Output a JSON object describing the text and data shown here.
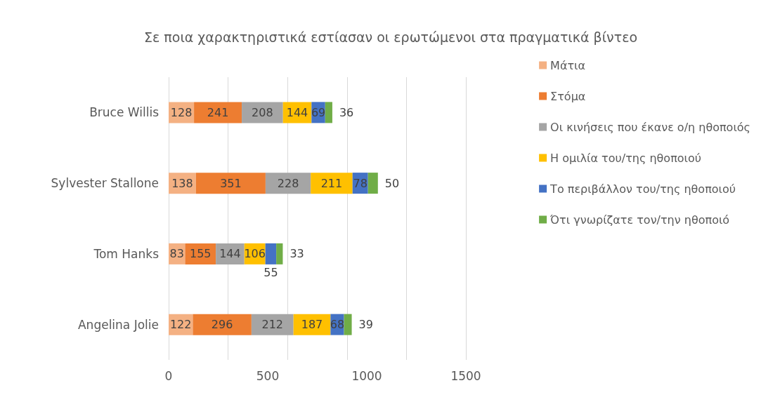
{
  "chart_data": {
    "type": "bar",
    "orientation": "horizontal",
    "stacked": true,
    "title": "Σε ποια χαρακτηριστικά εστίασαν οι ερωτώμενοι στα πραγματικά βίντεο",
    "categories": [
      "Bruce Willis",
      "Sylvester Stallone",
      "Tom Hanks",
      "Angelina Jolie"
    ],
    "series": [
      {
        "name": "Μάτια",
        "color": "#f4b183",
        "values": [
          128,
          138,
          83,
          122
        ]
      },
      {
        "name": "Στόμα",
        "color": "#ed7d31",
        "values": [
          241,
          351,
          155,
          296
        ]
      },
      {
        "name": "Οι κινήσεις που έκανε ο/η ηθοποιός",
        "color": "#a5a5a5",
        "values": [
          208,
          228,
          144,
          212
        ]
      },
      {
        "name": "Η ομιλία του/της ηθοποιού",
        "color": "#ffc000",
        "values": [
          144,
          211,
          106,
          187
        ]
      },
      {
        "name": "Το περιβάλλον του/της ηθοποιού",
        "color": "#4472c4",
        "values": [
          69,
          78,
          55,
          68
        ]
      },
      {
        "name": "Ότι γνωρίζατε τον/την ηθοποιό",
        "color": "#70ad47",
        "values": [
          36,
          50,
          33,
          39
        ]
      }
    ],
    "xlim": [
      0,
      1500
    ],
    "xticks": [
      0,
      500,
      1000,
      1500
    ],
    "grid": "x",
    "legend": "right",
    "data_labels": true
  }
}
